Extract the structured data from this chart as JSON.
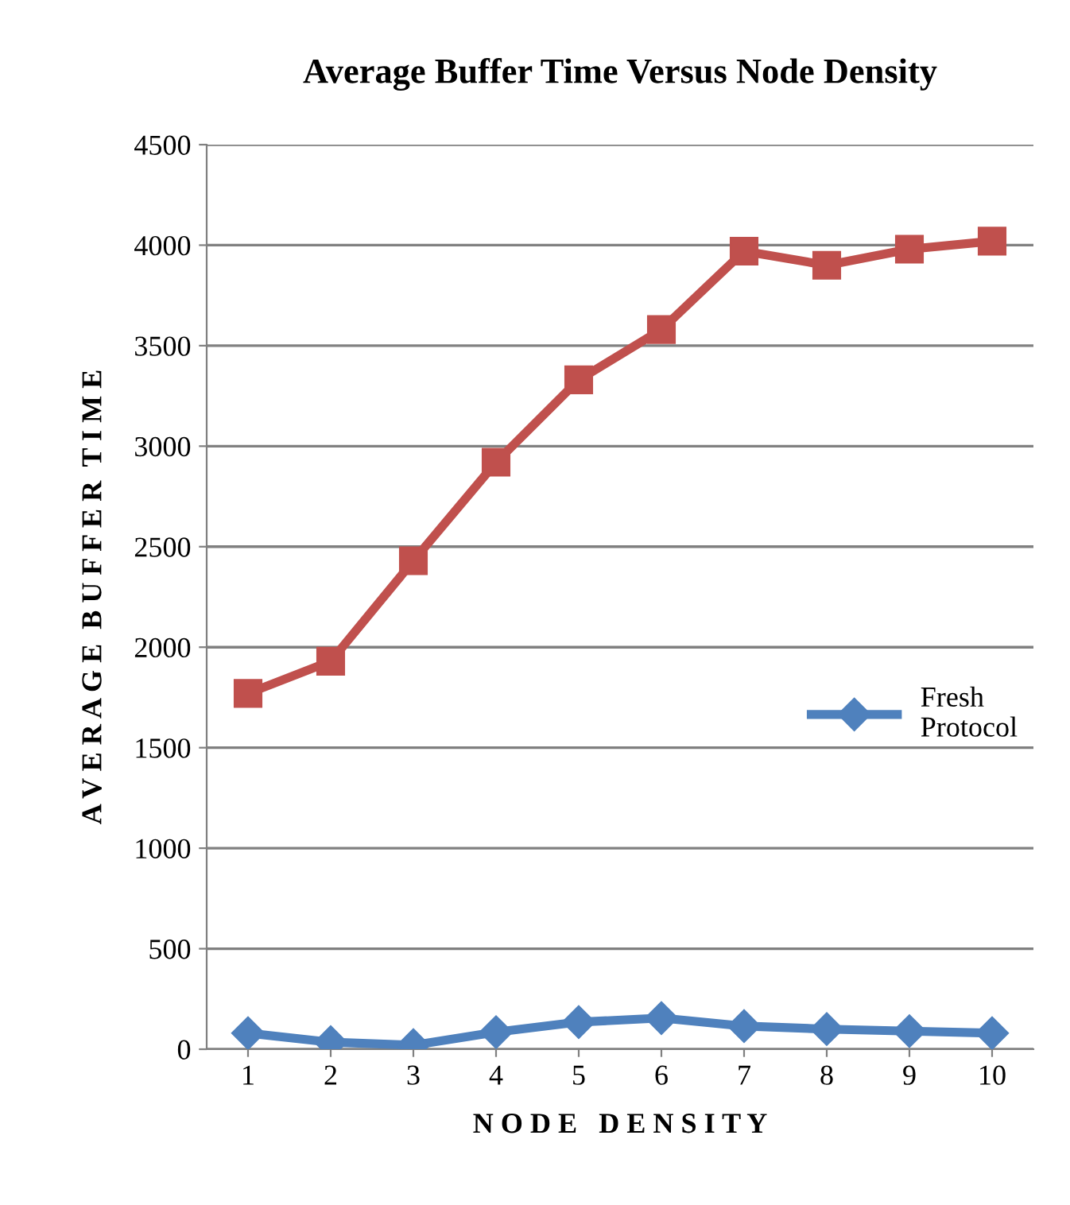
{
  "chart_data": {
    "type": "line",
    "title": "Average Buffer Time Versus Node Density",
    "xlabel": "N O D E   D E N S I T Y",
    "ylabel": "A V E R A G E  B U F F E R  T I M E",
    "categories": [
      "1",
      "2",
      "3",
      "4",
      "5",
      "6",
      "7",
      "8",
      "9",
      "10"
    ],
    "series": [
      {
        "name": "Fresh Protocol",
        "color": "#4f81bd",
        "marker": "diamond",
        "values": [
          80,
          35,
          20,
          85,
          135,
          155,
          115,
          100,
          90,
          80
        ]
      },
      {
        "color": "#c0504d",
        "marker": "square",
        "values": [
          1770,
          1930,
          2430,
          2920,
          3330,
          3580,
          3970,
          3900,
          3980,
          4020
        ]
      }
    ],
    "ylim": [
      0,
      4500
    ],
    "yticks": [
      0,
      500,
      1000,
      1500,
      2000,
      2500,
      3000,
      3500,
      4000,
      4500
    ],
    "grid": "y",
    "legend": "right"
  }
}
